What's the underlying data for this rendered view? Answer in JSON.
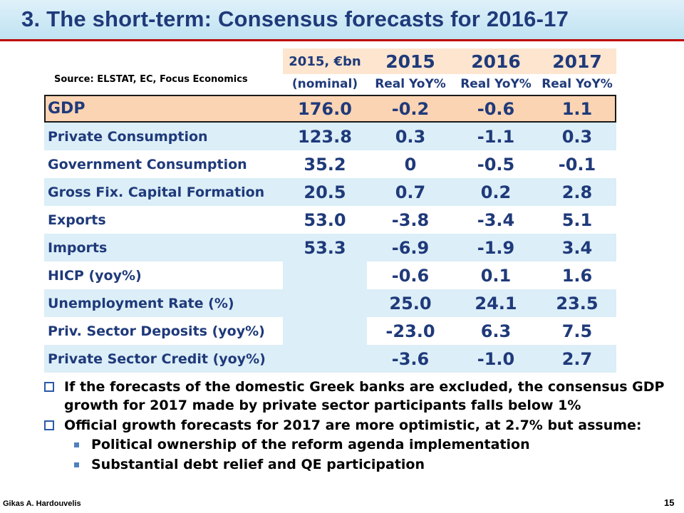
{
  "title": "3.  The short-term: Consensus forecasts for 2016-17",
  "source": "Source: ELSTAT, EC, Focus Economics",
  "table": {
    "header_top": [
      "2015, €bn",
      "2015",
      "2016",
      "2017"
    ],
    "header_bottom": [
      "(nominal)",
      "Real YoY%",
      "Real YoY%",
      "Real YoY%"
    ],
    "rows": [
      {
        "label": "GDP",
        "values": [
          "176.0",
          "-0.2",
          "-0.6",
          "1.1"
        ]
      },
      {
        "label": "Private Consumption",
        "values": [
          "123.8",
          "0.3",
          "-1.1",
          "0.3"
        ]
      },
      {
        "label": "Government Consumption",
        "values": [
          "35.2",
          "0",
          "-0.5",
          "-0.1"
        ]
      },
      {
        "label": "Gross Fix. Capital Formation",
        "values": [
          "20.5",
          "0.7",
          "0.2",
          "2.8"
        ]
      },
      {
        "label": "Exports",
        "values": [
          "53.0",
          "-3.8",
          "-3.4",
          "5.1"
        ]
      },
      {
        "label": "Imports",
        "values": [
          "53.3",
          "-6.9",
          "-1.9",
          "3.4"
        ]
      },
      {
        "label": "HICP  (yoy%)",
        "values": [
          "",
          "-0.6",
          "0.1",
          "1.6"
        ]
      },
      {
        "label": "Unemployment Rate (%)",
        "values": [
          "",
          "25.0",
          "24.1",
          "23.5"
        ]
      },
      {
        "label": "Priv. Sector Deposits (yoy%)",
        "values": [
          "",
          "-23.0",
          "6.3",
          "7.5"
        ]
      },
      {
        "label": "Private Sector Credit (yoy%)",
        "values": [
          "",
          "-3.6",
          "-1.0",
          "2.7"
        ]
      }
    ]
  },
  "bullets": [
    {
      "lines": [
        "If the forecasts of the domestic Greek banks are excluded, the consensus GDP",
        "growth for 2017 made by private sector  participants falls below 1%"
      ]
    },
    {
      "lines": [
        "Official growth forecasts for 2017 are more optimistic, at 2.7%  but assume:"
      ]
    }
  ],
  "sub_bullets": [
    "Political ownership of the reform agenda implementation",
    "Substantial debt relief and QE participation"
  ],
  "footer": {
    "author": "Gikas A. Hardouvelis",
    "page": "15"
  },
  "colors": {
    "title_text": "#1f3a7a",
    "title_rule": "#c00000",
    "table_text": "#1f3a7a",
    "gdp_fill": "#fbd4b4",
    "header_fill": "#fde5cf",
    "row_shade": "#dceef7",
    "bullet_square": "#4f81bd"
  },
  "icons": {
    "bullet_level1": "checkbox-bullet-icon",
    "bullet_level2": "square-bullet-icon"
  }
}
